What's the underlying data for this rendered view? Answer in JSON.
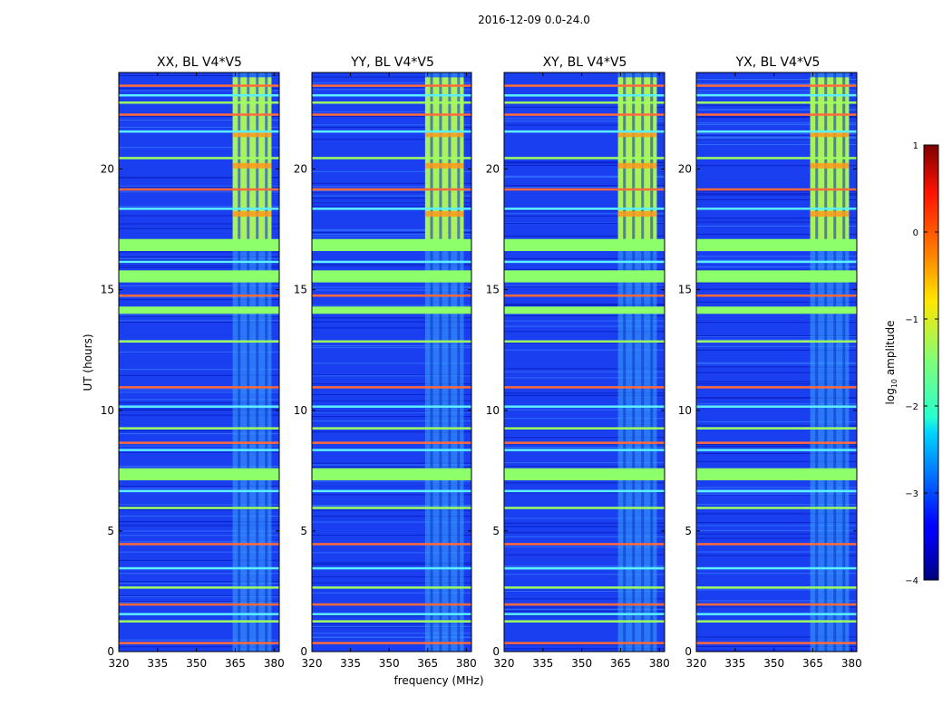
{
  "chart_data": {
    "type": "heatmap",
    "title": "2016-12-09 0.0-24.0",
    "xlabel": "frequency (MHz)",
    "ylabel": "UT (hours)",
    "xlim": [
      320,
      382
    ],
    "ylim": [
      0,
      24
    ],
    "xticks": [
      320,
      335,
      350,
      365,
      380
    ],
    "yticks": [
      0,
      5,
      10,
      15,
      20
    ],
    "panels": [
      {
        "title": "XX, BL V4*V5"
      },
      {
        "title": "YY, BL V4*V5"
      },
      {
        "title": "XY, BL V4*V5"
      },
      {
        "title": "YX, BL V4*V5"
      }
    ],
    "colorbar": {
      "label": "log10 amplitude",
      "label_main": "log",
      "label_sub": "10",
      "label_rest": " amplitude",
      "range": [
        -4,
        1
      ],
      "ticks": [
        1,
        0,
        -1,
        -2,
        -3,
        -4
      ],
      "tick_labels": [
        "1",
        "0",
        "−1",
        "−2",
        "−3",
        "−4"
      ]
    },
    "features": {
      "background_level": -3,
      "broadband_rfi_hours": [
        0.4,
        1.3,
        1.6,
        2.0,
        2.7,
        3.5,
        4.5,
        6.0,
        6.7,
        7.2,
        7.4,
        8.4,
        8.7,
        9.3,
        10.2,
        11.0,
        12.9,
        14.2,
        14.8,
        15.5,
        16.2,
        16.7,
        17.0,
        18.4,
        19.2,
        20.5,
        21.6,
        22.3,
        22.8,
        23.1,
        23.5
      ],
      "rfi_band_mhz": [
        364,
        379
      ],
      "strong_rfi_hours": [
        16.8,
        23.8
      ]
    }
  }
}
